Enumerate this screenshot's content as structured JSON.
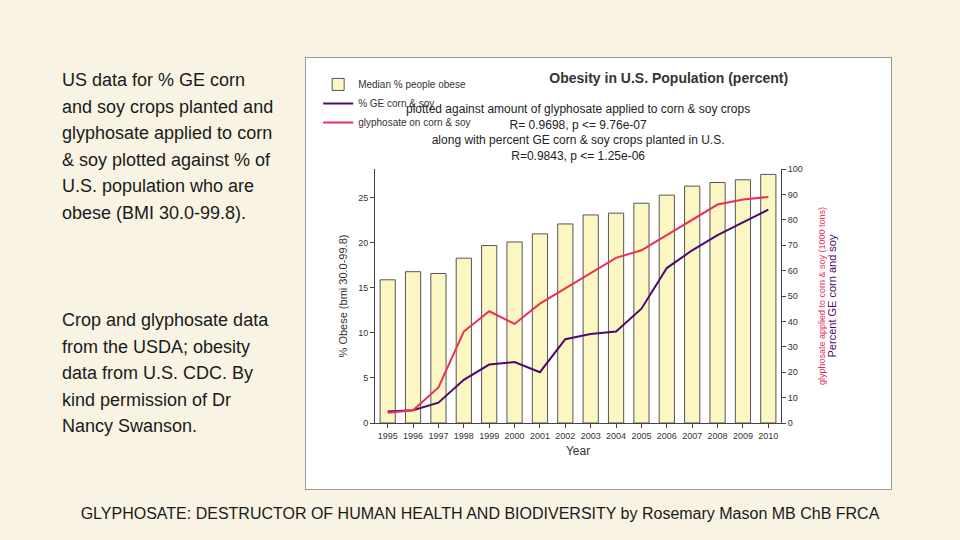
{
  "side_text": [
    "US data for % GE corn and soy crops planted and glyphosate applied to corn & soy plotted against % of U.S. population who are obese (BMI 30.0-99.8).",
    "Crop and glyphosate data from the USDA; obesity data from U.S. CDC. By kind permission of Dr Nancy Swanson."
  ],
  "footer": "GLYPHOSATE: DESTRUCTOR OF HUMAN HEALTH AND BIODIVERSITY by Rosemary Mason MB ChB FRCA",
  "chart_data": {
    "type": "bar",
    "title": "Obesity in U.S. Population (percent)",
    "subtitle": [
      "plotted against amount of glyphosate applied to corn & soy crops",
      "R= 0.9698, p <= 9.76e-07",
      "along with percent GE corn & soy crops planted in U.S.",
      "R=0.9843, p <= 1.25e-06"
    ],
    "x_label": "Year",
    "y_label": "% Obese (bmi 30.0-99.8)",
    "y2_label": "Percent GE corn and soy",
    "annotations": [
      "glyphosate applied to corn & soy (1000 tons)"
    ],
    "x": [
      1995,
      1996,
      1997,
      1998,
      1999,
      2000,
      2001,
      2002,
      2003,
      2004,
      2005,
      2006,
      2007,
      2008,
      2009,
      2010
    ],
    "xlim": [
      1994.5,
      2010.5
    ],
    "xticks": [
      1995,
      1996,
      1997,
      1998,
      1999,
      2000,
      2001,
      2002,
      2003,
      2004,
      2005,
      2006,
      2007,
      2008,
      2009,
      2010
    ],
    "ylim": [
      0,
      28.2
    ],
    "yticks": [
      0,
      5,
      10,
      15,
      20,
      25
    ],
    "y2lim": [
      0,
      100
    ],
    "y2ticks": [
      0,
      10,
      20,
      30,
      40,
      50,
      60,
      70,
      80,
      90,
      100
    ],
    "grid": false,
    "legend": "top-left",
    "series": [
      {
        "name": "Median % people obese",
        "type": "bar",
        "color": "#fbf6c2",
        "values": [
          15.9,
          16.8,
          16.6,
          18.3,
          19.7,
          20.1,
          21.0,
          22.1,
          23.1,
          23.3,
          24.4,
          25.3,
          26.3,
          26.7,
          27.0,
          27.6
        ]
      },
      {
        "name": "% GE corn & soy",
        "type": "line",
        "axis": "y2",
        "color": "#4b0a6b",
        "values": [
          4.5,
          5,
          8,
          17,
          23,
          24,
          20,
          33,
          35,
          36,
          45,
          61,
          68,
          74,
          79,
          84
        ]
      },
      {
        "name": "glyphosate on corn & soy",
        "type": "line",
        "axis": "y2",
        "color": "#e8305a",
        "values": [
          4,
          5,
          14,
          36,
          44,
          39,
          47,
          53,
          59,
          65,
          68,
          74,
          80,
          86,
          88,
          89
        ]
      }
    ]
  }
}
